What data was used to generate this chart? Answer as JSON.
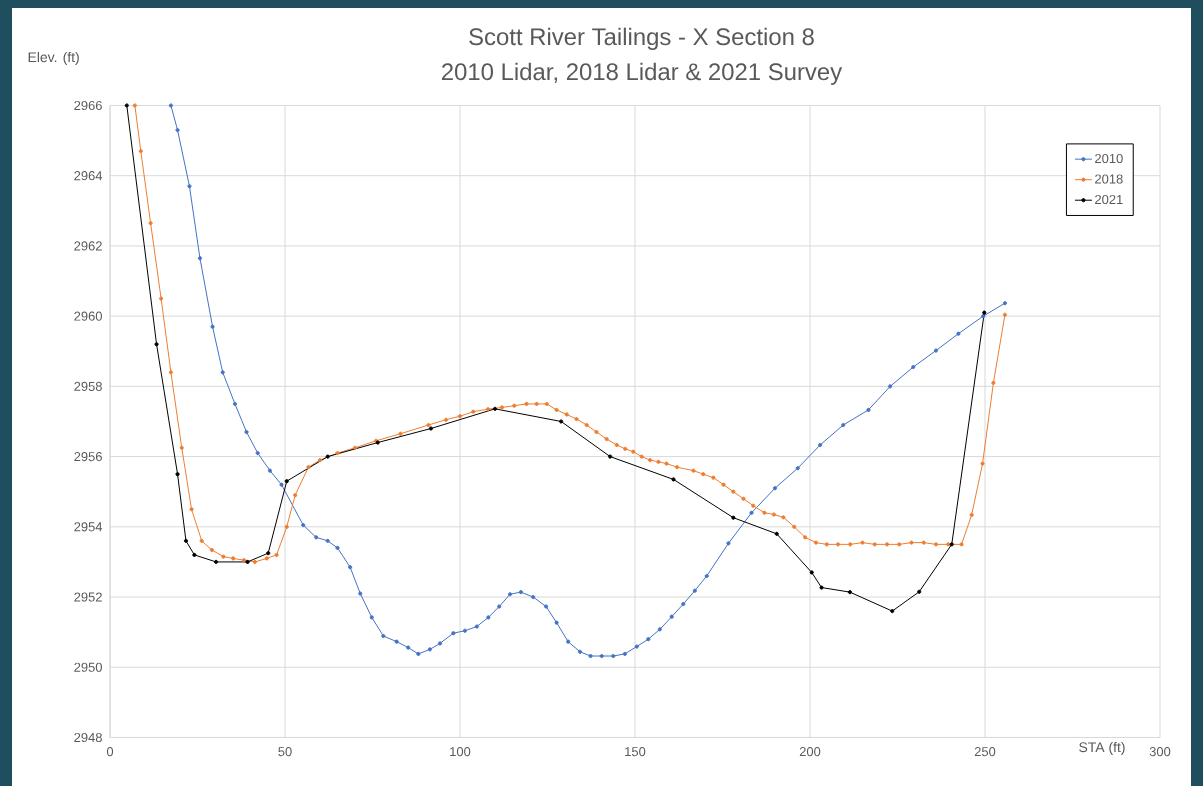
{
  "chart_data": {
    "type": "line",
    "title": "Scott River Tailings - X Section 8",
    "subtitle": "2010 Lidar, 2018 Lidar & 2021 Survey",
    "xlabel": "STA (ft)",
    "ylabel": "Elev. (ft)",
    "xlim": [
      0,
      300
    ],
    "xticks": [
      0,
      50,
      100,
      150,
      200,
      250,
      300
    ],
    "ylim": [
      2948,
      2966
    ],
    "yticks": [
      2948,
      2950,
      2952,
      2954,
      2956,
      2958,
      2960,
      2962,
      2964,
      2966
    ],
    "grid": true,
    "legend": "top right",
    "marker": "circle",
    "line_style": "solid",
    "series": [
      {
        "name": "2010",
        "color": "#4472c4",
        "x": [
          17.4,
          19.3,
          22.7,
          25.7,
          29.3,
          32.2,
          35.7,
          39.0,
          42.2,
          45.7,
          49.0,
          55.2,
          58.9,
          62.2,
          65.0,
          68.6,
          71.5,
          74.8,
          78.1,
          81.9,
          85.2,
          88.1,
          91.4,
          94.3,
          98.1,
          101.4,
          104.8,
          108.1,
          111.2,
          114.3,
          117.4,
          120.9,
          124.6,
          127.6,
          130.9,
          134.3,
          137.3,
          140.5,
          143.8,
          147.1,
          150.5,
          153.8,
          157.1,
          160.5,
          163.8,
          167.1,
          170.5,
          176.7,
          183.3,
          190.0,
          196.5,
          202.9,
          209.5,
          216.7,
          222.9,
          229.5,
          236.0,
          242.4,
          249.5,
          255.7
        ],
        "values": [
          2966,
          2965.3,
          2963.7,
          2961.65,
          2959.7,
          2958.4,
          2957.5,
          2956.7,
          2956.1,
          2955.6,
          2955.2,
          2954.05,
          2953.7,
          2953.6,
          2953.4,
          2952.85,
          2952.1,
          2951.42,
          2950.89,
          2950.73,
          2950.56,
          2950.38,
          2950.51,
          2950.68,
          2950.97,
          2951.04,
          2951.16,
          2951.42,
          2951.73,
          2952.08,
          2952.14,
          2952.0,
          2951.73,
          2951.27,
          2950.73,
          2950.44,
          2950.32,
          2950.32,
          2950.32,
          2950.38,
          2950.59,
          2950.8,
          2951.08,
          2951.44,
          2951.8,
          2952.18,
          2952.6,
          2953.53,
          2954.4,
          2955.1,
          2955.67,
          2956.33,
          2956.9,
          2957.33,
          2958.0,
          2958.55,
          2959.02,
          2959.5,
          2960.0,
          2960.37
        ]
      },
      {
        "name": "2018",
        "color": "#ed7d31",
        "x": [
          7.1,
          8.8,
          11.6,
          14.6,
          17.4,
          20.5,
          23.3,
          26.2,
          29.1,
          32.4,
          35.2,
          38.3,
          41.4,
          44.8,
          47.6,
          50.5,
          52.9,
          56.7,
          60.0,
          65.0,
          70.0,
          76.0,
          83.0,
          91.0,
          96.0,
          100.0,
          103.8,
          108.0,
          112.0,
          115.5,
          119.0,
          121.9,
          124.8,
          127.6,
          130.5,
          133.3,
          136.2,
          139.0,
          141.9,
          144.8,
          147.2,
          149.5,
          151.9,
          154.3,
          156.7,
          159.0,
          162.0,
          166.7,
          169.5,
          172.4,
          175.3,
          178.1,
          181.0,
          183.8,
          187.0,
          189.7,
          192.4,
          195.5,
          198.6,
          201.7,
          204.8,
          208.0,
          211.5,
          215.0,
          218.5,
          222.0,
          225.5,
          229.0,
          232.5,
          236.0,
          239.5,
          243.3,
          246.2,
          249.3,
          252.4,
          255.7
        ],
        "values": [
          2966,
          2964.7,
          2962.65,
          2960.5,
          2958.4,
          2956.25,
          2954.5,
          2953.6,
          2953.34,
          2953.15,
          2953.1,
          2953.05,
          2953.0,
          2953.1,
          2953.2,
          2954.0,
          2954.9,
          2955.7,
          2955.9,
          2956.1,
          2956.25,
          2956.45,
          2956.65,
          2956.9,
          2957.05,
          2957.15,
          2957.28,
          2957.35,
          2957.4,
          2957.45,
          2957.5,
          2957.5,
          2957.5,
          2957.33,
          2957.2,
          2957.07,
          2956.9,
          2956.7,
          2956.5,
          2956.33,
          2956.22,
          2956.14,
          2956.0,
          2955.9,
          2955.85,
          2955.8,
          2955.7,
          2955.6,
          2955.5,
          2955.4,
          2955.2,
          2955.0,
          2954.8,
          2954.6,
          2954.4,
          2954.35,
          2954.27,
          2954.0,
          2953.7,
          2953.55,
          2953.5,
          2953.5,
          2953.5,
          2953.55,
          2953.5,
          2953.5,
          2953.5,
          2953.55,
          2953.55,
          2953.5,
          2953.5,
          2953.5,
          2954.34,
          2955.8,
          2958.1,
          2960.04
        ]
      },
      {
        "name": "2021",
        "color": "#000000",
        "x": [
          4.8,
          13.3,
          19.3,
          21.7,
          24.1,
          30.3,
          39.3,
          45.2,
          50.5,
          62.2,
          76.5,
          91.7,
          110.0,
          128.9,
          142.9,
          161.0,
          178.1,
          190.5,
          200.5,
          203.3,
          211.4,
          223.5,
          231.2,
          240.5,
          249.8
        ],
        "values": [
          2966,
          2959.2,
          2955.5,
          2953.6,
          2953.2,
          2953.0,
          2953.0,
          2953.25,
          2955.3,
          2956.0,
          2956.4,
          2956.8,
          2957.36,
          2957.0,
          2956.0,
          2955.35,
          2954.26,
          2953.8,
          2952.7,
          2952.27,
          2952.14,
          2951.6,
          2952.15,
          2953.5,
          2960.1
        ]
      }
    ]
  }
}
